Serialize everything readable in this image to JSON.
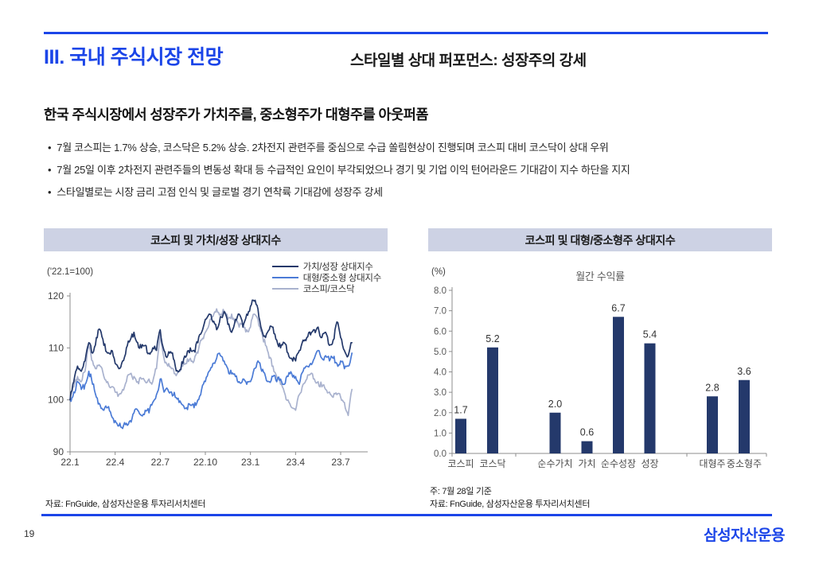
{
  "header": {
    "title": "III. 국내 주식시장 전망",
    "subtitle": "스타일별 상대 퍼포먼스: 성장주의 강세"
  },
  "headline": "한국 주식시장에서 성장주가 가치주를, 중소형주가 대형주를 아웃퍼폼",
  "bullets": [
    "7월 코스피는 1.7% 상승, 코스닥은 5.2% 상승. 2차전지 관련주를 중심으로 수급 쏠림현상이 진행되며 코스피 대비 코스닥이 상대 우위",
    "7월 25일 이후 2차전지 관련주들의 변동성 확대 등 수급적인 요인이 부각되었으나 경기 및 기업 이익 턴어라운드 기대감이 지수 하단을 지지",
    "스타일별로는 시장 금리 고점 인식 및 글로벌 경기 연착륙 기대감에 성장주 강세"
  ],
  "left_panel": {
    "title": "코스피 및 가치/성장 상대지수",
    "unit_label": "('22.1=100)",
    "source": "자료: FnGuide, 삼성자산운용 투자리서치센터"
  },
  "right_panel": {
    "title": "코스피 및 대형/중소형주 상대지수",
    "unit_label": "(%)",
    "note": "주: 7월 28일 기준",
    "source": "자료: FnGuide, 삼성자산운용 투자리서치센터"
  },
  "footer": {
    "page_number": "19",
    "logo_text": "삼성자산운용"
  },
  "colors": {
    "accent_blue": "#1B45E8",
    "navy": "#24396B",
    "blue": "#4B7BD6",
    "lavender": "#A9B2CE",
    "header_band": "#CDD2E4"
  },
  "chart_data": [
    {
      "type": "line",
      "title": "코스피 및 가치/성장 상대지수",
      "unit": "'22.1=100",
      "x_step": 0.25,
      "x_tick_labels": [
        "22.1",
        "22.4",
        "22.7",
        "22.10",
        "23.1",
        "23.4",
        "23.7"
      ],
      "x_tick_positions": [
        0,
        3,
        6,
        9,
        12,
        15,
        18
      ],
      "ylim": [
        90,
        120
      ],
      "y_ticks": [
        90,
        100,
        110,
        120
      ],
      "grid": false,
      "legend_position": "top-right",
      "series": [
        {
          "name": "가치/성장 상대지수",
          "color": "#24396B",
          "values": [
            100,
            103.5,
            106.5,
            105.5,
            107.5,
            111,
            109,
            112,
            113.5,
            110.5,
            109,
            109.5,
            107,
            106,
            107.5,
            110,
            111.5,
            113,
            111,
            110,
            110.5,
            109,
            110,
            109.5,
            113.5,
            109.5,
            108.5,
            109,
            106.5,
            105.5,
            107,
            108.5,
            110,
            109.5,
            111,
            113,
            115.5,
            116.5,
            115,
            113.5,
            116,
            117,
            114.5,
            113,
            115.5,
            116.5,
            114,
            116.5,
            118,
            119,
            117.5,
            113.5,
            112,
            113.5,
            114,
            111.5,
            110,
            111,
            109,
            108,
            107.5,
            109.5,
            111.5,
            112,
            112.5,
            113.5,
            114,
            112,
            113,
            110.5,
            111.5,
            115,
            112,
            109.5,
            108.5,
            111
          ]
        },
        {
          "name": "대형/중소형 상대지수",
          "color": "#4B7BD6",
          "values": [
            100,
            101.5,
            103.5,
            102,
            103,
            105.5,
            103,
            100.5,
            99,
            98,
            98.5,
            97,
            96,
            95,
            94.5,
            95.5,
            96,
            97.5,
            98,
            97,
            98,
            97.5,
            99.5,
            101,
            104,
            101.5,
            102,
            101.5,
            100.5,
            99.5,
            99,
            98.5,
            99,
            98.5,
            100,
            102,
            103.5,
            105.5,
            107,
            108,
            108.5,
            107.5,
            106,
            105,
            104.5,
            103.5,
            104,
            103,
            103.5,
            106,
            107.5,
            105.5,
            104.5,
            103.5,
            104.5,
            103.5,
            104,
            103,
            104.5,
            105,
            104.5,
            103,
            105.5,
            106.5,
            107,
            108,
            109.5,
            108,
            108.5,
            107.5,
            108,
            107,
            107.5,
            106,
            106.5,
            109
          ]
        },
        {
          "name": "코스피/코스닥",
          "color": "#A9B2CE",
          "values": [
            100,
            102.5,
            104.5,
            103.5,
            105.5,
            110.5,
            107.5,
            106,
            106.5,
            104.5,
            103.5,
            102.5,
            101.5,
            101,
            102,
            103.5,
            105,
            104.5,
            103.5,
            104,
            103.5,
            104,
            103.5,
            106,
            112.5,
            108,
            106.5,
            106,
            105,
            105.5,
            106.5,
            107,
            108,
            107.5,
            109,
            111.5,
            113,
            114.5,
            116,
            117.5,
            116.5,
            117,
            115.5,
            116.5,
            115,
            114,
            114.5,
            113.5,
            114,
            116.5,
            115.5,
            113,
            110.5,
            108,
            106.5,
            104.5,
            103,
            101.5,
            100,
            98.5,
            98,
            101,
            103,
            104,
            105,
            104,
            103.5,
            102.5,
            102,
            101.5,
            100.5,
            101,
            100.5,
            99.5,
            97,
            102
          ]
        }
      ]
    },
    {
      "type": "bar",
      "title": "월간 수익률",
      "unit": "%",
      "ylim": [
        0,
        8
      ],
      "y_tick_step": 1,
      "grid": false,
      "bar_color": "#24396B",
      "note": "7월 28일 기준",
      "groups": [
        {
          "items": [
            {
              "label": "코스피",
              "value": 1.7
            },
            {
              "label": "코스닥",
              "value": 5.2
            }
          ]
        },
        {
          "items": [
            {
              "label": "순수가치",
              "value": 2.0
            },
            {
              "label": "가치",
              "value": 0.6
            },
            {
              "label": "순수성장",
              "value": 6.7
            },
            {
              "label": "성장",
              "value": 5.4
            }
          ]
        },
        {
          "items": [
            {
              "label": "대형주",
              "value": 2.8
            },
            {
              "label": "중소형주",
              "value": 3.6
            }
          ]
        }
      ]
    }
  ]
}
